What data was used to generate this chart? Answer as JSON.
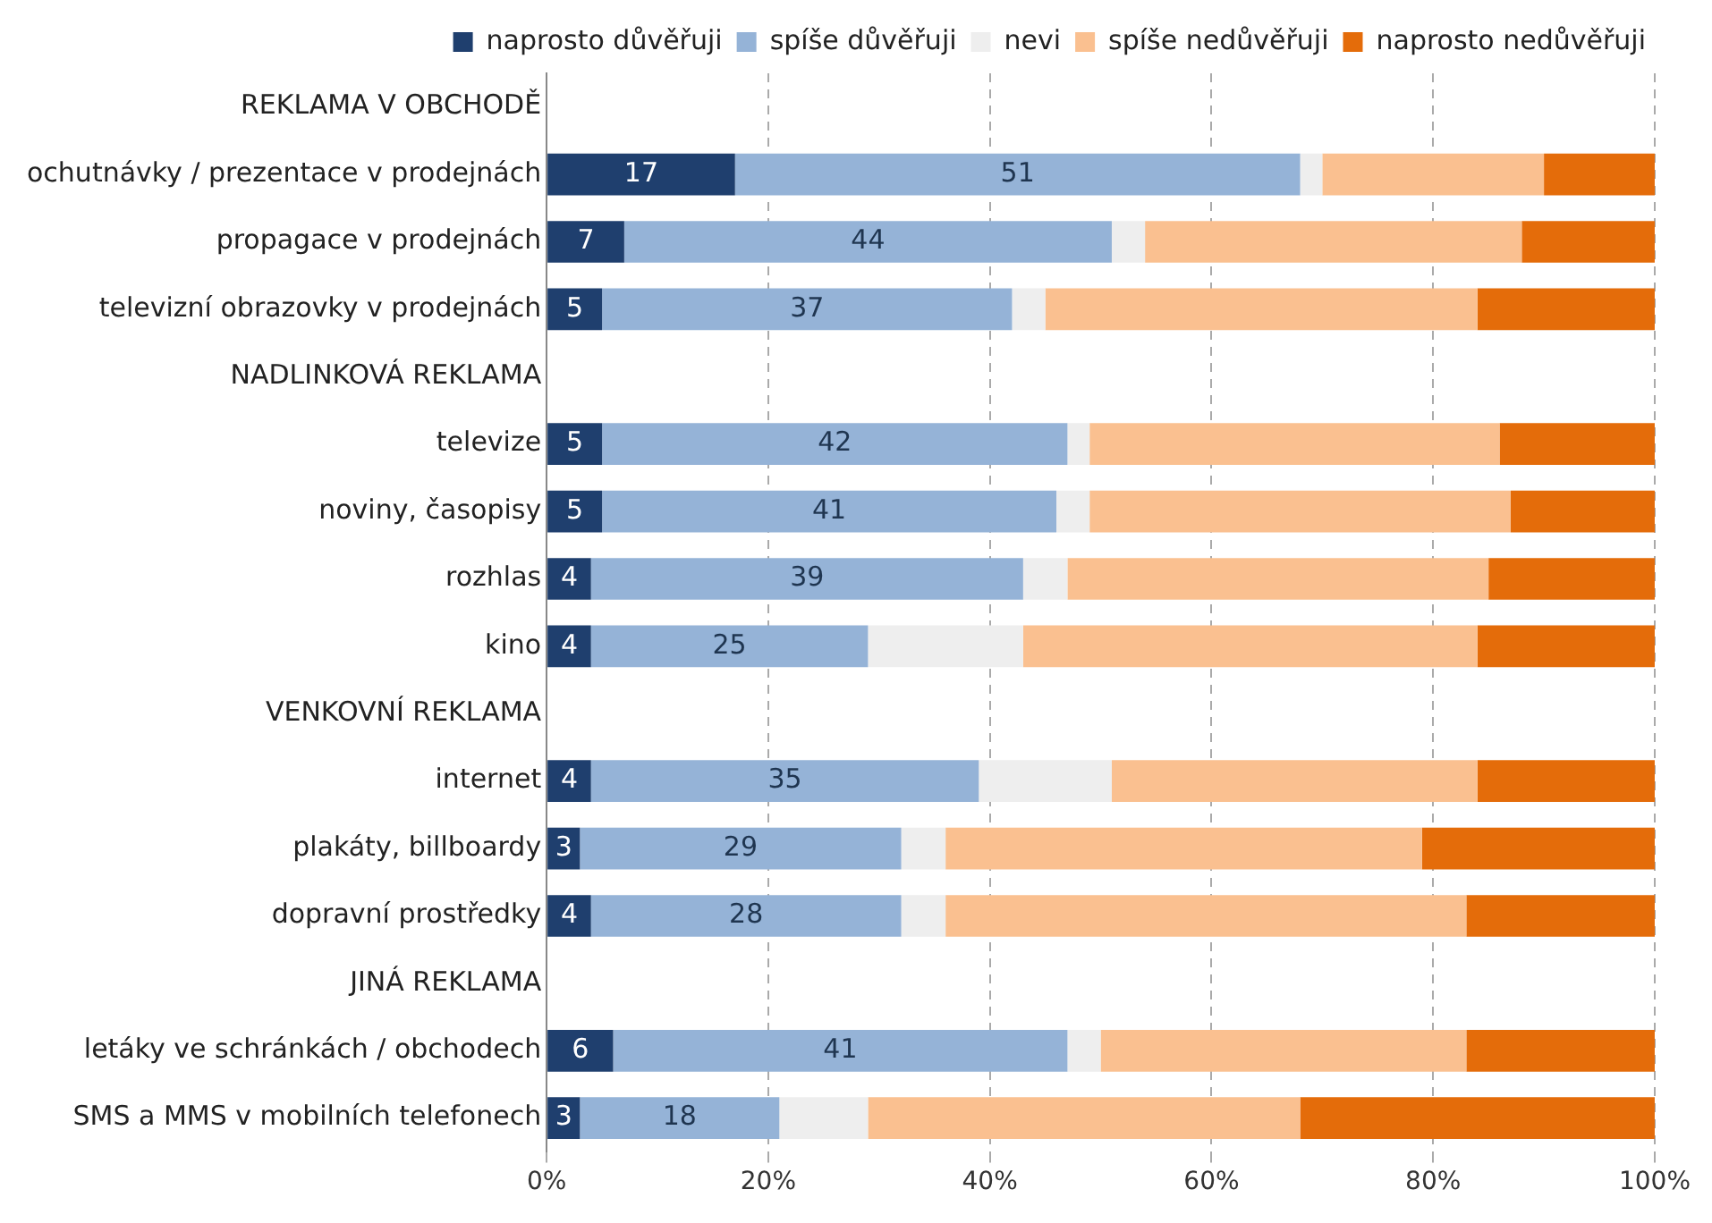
{
  "chart_data": {
    "type": "bar",
    "orientation": "horizontal",
    "stacked": true,
    "categories": [
      "REKLAMA V OBCHODĚ",
      "ochutnávky / prezentace v prodejnách",
      "propagace v prodejnách",
      "televizní obrazovky v prodejnách",
      "NADLINKOVÁ REKLAMA",
      "televize",
      "noviny, časopisy",
      "rozhlas",
      "kino",
      "VENKOVNÍ REKLAMA",
      "internet",
      "plakáty, billboardy",
      "dopravní prostředky",
      "JINÁ REKLAMA",
      "letáky ve schránkách / obchodech",
      "SMS a MMS v mobilních telefonech"
    ],
    "series": [
      {
        "name": "naprosto důvěřuji",
        "color": "#1f3f6e",
        "values": [
          null,
          17,
          7,
          5,
          null,
          5,
          5,
          4,
          4,
          null,
          4,
          3,
          4,
          null,
          6,
          3
        ],
        "value_labels": [
          null,
          "17",
          "7",
          "5",
          null,
          "5",
          "5",
          "4",
          "4",
          null,
          "4",
          "3",
          "4",
          null,
          "6",
          "3"
        ]
      },
      {
        "name": "spíše důvěřuji",
        "color": "#95b3d7",
        "values": [
          null,
          51,
          44,
          37,
          null,
          42,
          41,
          39,
          25,
          null,
          35,
          29,
          28,
          null,
          41,
          18
        ],
        "value_labels": [
          null,
          "51",
          "44",
          "37",
          null,
          "42",
          "41",
          "39",
          "25",
          null,
          "35",
          "29",
          "28",
          null,
          "41",
          "18"
        ]
      },
      {
        "name": "nevi",
        "color": "#eeeeee",
        "values": [
          null,
          2,
          3,
          3,
          null,
          2,
          3,
          4,
          14,
          null,
          12,
          4,
          4,
          null,
          3,
          8
        ]
      },
      {
        "name": "spíše nedůvěřuji",
        "color": "#fac090",
        "values": [
          null,
          20,
          34,
          39,
          null,
          37,
          38,
          38,
          41,
          null,
          33,
          43,
          47,
          null,
          33,
          39
        ]
      },
      {
        "name": "naprosto nedůvěřuji",
        "color": "#e46c0a",
        "values": [
          null,
          10,
          12,
          16,
          null,
          14,
          13,
          15,
          16,
          null,
          16,
          21,
          17,
          null,
          17,
          32
        ]
      }
    ],
    "xlim": [
      0,
      100
    ],
    "xticks": [
      {
        "value": 0,
        "label": "0%"
      },
      {
        "value": 20,
        "label": "20%"
      },
      {
        "value": 40,
        "label": "40%"
      },
      {
        "value": 60,
        "label": "60%"
      },
      {
        "value": 80,
        "label": "80%"
      },
      {
        "value": 100,
        "label": "100%"
      }
    ],
    "grid": "x",
    "legend": "top"
  }
}
